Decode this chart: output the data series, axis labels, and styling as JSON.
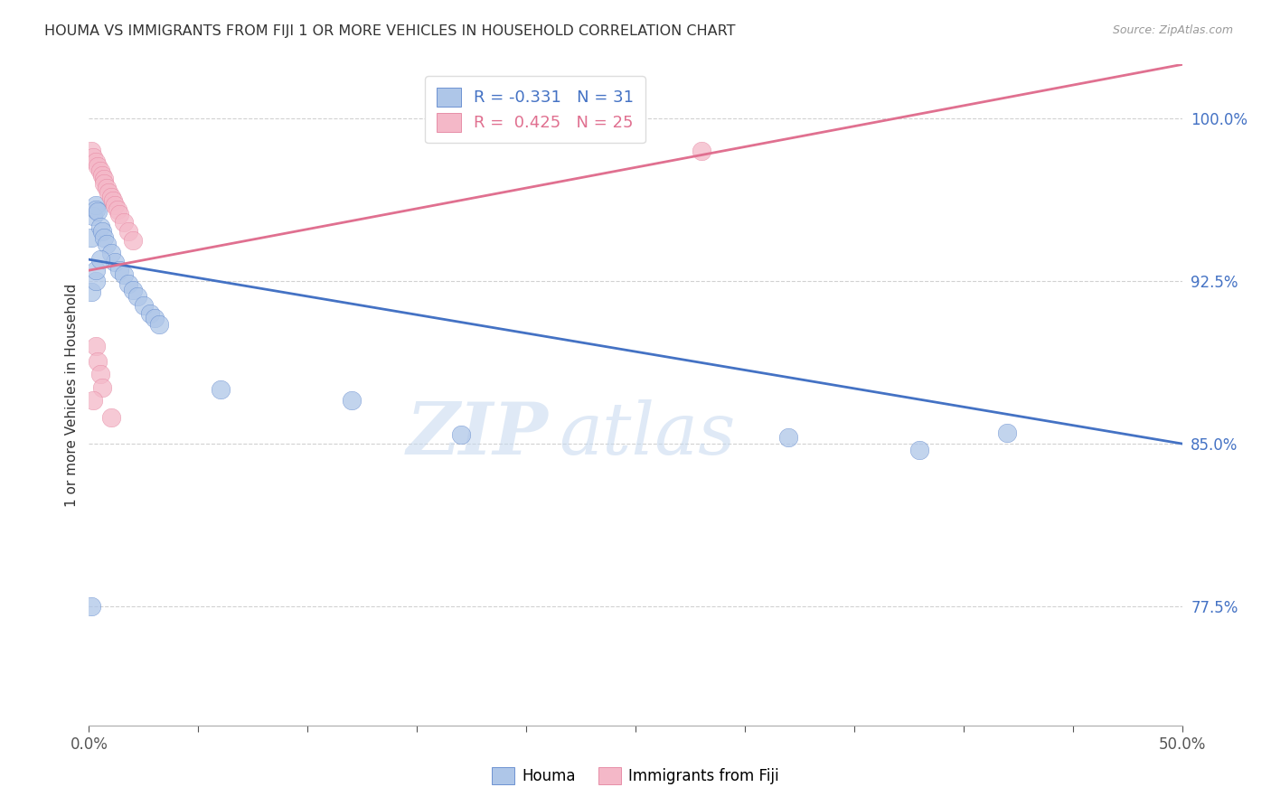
{
  "title": "HOUMA VS IMMIGRANTS FROM FIJI 1 OR MORE VEHICLES IN HOUSEHOLD CORRELATION CHART",
  "source": "Source: ZipAtlas.com",
  "ylabel": "1 or more Vehicles in Household",
  "legend_houma": "Houma",
  "legend_fiji": "Immigrants from Fiji",
  "houma_R": "-0.331",
  "houma_N": "31",
  "fiji_R": "0.425",
  "fiji_N": "25",
  "houma_color": "#aec6e8",
  "fiji_color": "#f4b8c8",
  "houma_line_color": "#4472c4",
  "fiji_line_color": "#e07090",
  "watermark_zip": "ZIP",
  "watermark_atlas": "atlas",
  "xmin": 0.0,
  "xmax": 0.5,
  "ymin": 0.72,
  "ymax": 1.025,
  "yticks": [
    0.775,
    0.85,
    0.925,
    1.0
  ],
  "ytick_labels": [
    "77.5%",
    "85.0%",
    "92.5%",
    "100.0%"
  ],
  "houma_x": [
    0.001,
    0.002,
    0.003,
    0.003,
    0.004,
    0.005,
    0.006,
    0.007,
    0.008,
    0.01,
    0.012,
    0.014,
    0.016,
    0.018,
    0.02,
    0.022,
    0.025,
    0.028,
    0.03,
    0.032,
    0.06,
    0.12,
    0.17,
    0.32,
    0.38,
    0.42,
    0.001,
    0.003,
    0.003,
    0.005,
    0.001
  ],
  "houma_y": [
    0.945,
    0.955,
    0.96,
    0.958,
    0.957,
    0.95,
    0.948,
    0.945,
    0.942,
    0.938,
    0.934,
    0.93,
    0.928,
    0.924,
    0.921,
    0.918,
    0.914,
    0.91,
    0.908,
    0.905,
    0.875,
    0.87,
    0.854,
    0.853,
    0.847,
    0.855,
    0.92,
    0.925,
    0.93,
    0.935,
    0.775
  ],
  "fiji_x": [
    0.001,
    0.002,
    0.003,
    0.004,
    0.005,
    0.006,
    0.007,
    0.007,
    0.008,
    0.009,
    0.01,
    0.011,
    0.012,
    0.013,
    0.014,
    0.016,
    0.018,
    0.02,
    0.003,
    0.004,
    0.005,
    0.006,
    0.01,
    0.28,
    0.002
  ],
  "fiji_y": [
    0.985,
    0.982,
    0.98,
    0.978,
    0.976,
    0.974,
    0.972,
    0.97,
    0.968,
    0.966,
    0.964,
    0.962,
    0.96,
    0.958,
    0.956,
    0.952,
    0.948,
    0.944,
    0.895,
    0.888,
    0.882,
    0.876,
    0.862,
    0.985,
    0.87
  ],
  "houma_line_x0": 0.0,
  "houma_line_x1": 0.5,
  "houma_line_y0": 0.935,
  "houma_line_y1": 0.85,
  "fiji_line_x0": 0.0,
  "fiji_line_x1": 0.5,
  "fiji_line_y0": 0.93,
  "fiji_line_y1": 1.025
}
